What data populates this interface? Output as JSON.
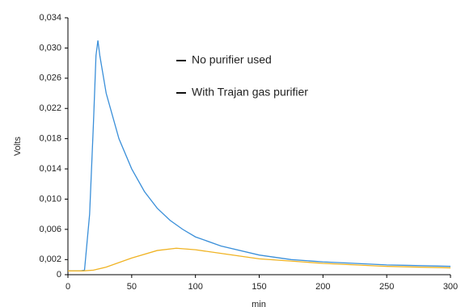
{
  "chart_data": {
    "type": "line",
    "x_label": "min",
    "y_label": "Volts",
    "xlim": [
      0,
      300
    ],
    "xticks": [
      0,
      50,
      100,
      150,
      200,
      250,
      300
    ],
    "ylim": [
      0,
      0.034
    ],
    "yticks": [
      {
        "value": 0,
        "label": "0"
      },
      {
        "value": 0.002,
        "label": "0,002"
      },
      {
        "value": 0.006,
        "label": "0,006"
      },
      {
        "value": 0.01,
        "label": "0,010"
      },
      {
        "value": 0.014,
        "label": "0,014"
      },
      {
        "value": 0.018,
        "label": "0,018"
      },
      {
        "value": 0.022,
        "label": "0,022"
      },
      {
        "value": 0.026,
        "label": "0,026"
      },
      {
        "value": 0.03,
        "label": "0,030"
      },
      {
        "value": 0.034,
        "label": "0,034"
      }
    ],
    "legend": "upper center",
    "series": [
      {
        "name": "No purifier used",
        "color": "#3a8fd9",
        "x": [
          0,
          10,
          13,
          17,
          20,
          22,
          23.5,
          25,
          30,
          40,
          50,
          60,
          70,
          80,
          90,
          100,
          120,
          150,
          175,
          200,
          250,
          300
        ],
        "values": [
          0.0005,
          0.0005,
          0.0006,
          0.008,
          0.02,
          0.029,
          0.031,
          0.029,
          0.024,
          0.018,
          0.014,
          0.011,
          0.0088,
          0.0072,
          0.006,
          0.005,
          0.0038,
          0.0026,
          0.002,
          0.0017,
          0.0013,
          0.0011
        ]
      },
      {
        "name": "With Trajan gas purifier",
        "color": "#f0b323",
        "x": [
          0,
          12,
          20,
          30,
          50,
          70,
          85,
          100,
          125,
          150,
          200,
          250,
          300
        ],
        "values": [
          0.0005,
          0.0005,
          0.0006,
          0.001,
          0.0022,
          0.0032,
          0.0035,
          0.0033,
          0.0027,
          0.0021,
          0.0015,
          0.0011,
          0.0009
        ]
      }
    ]
  }
}
